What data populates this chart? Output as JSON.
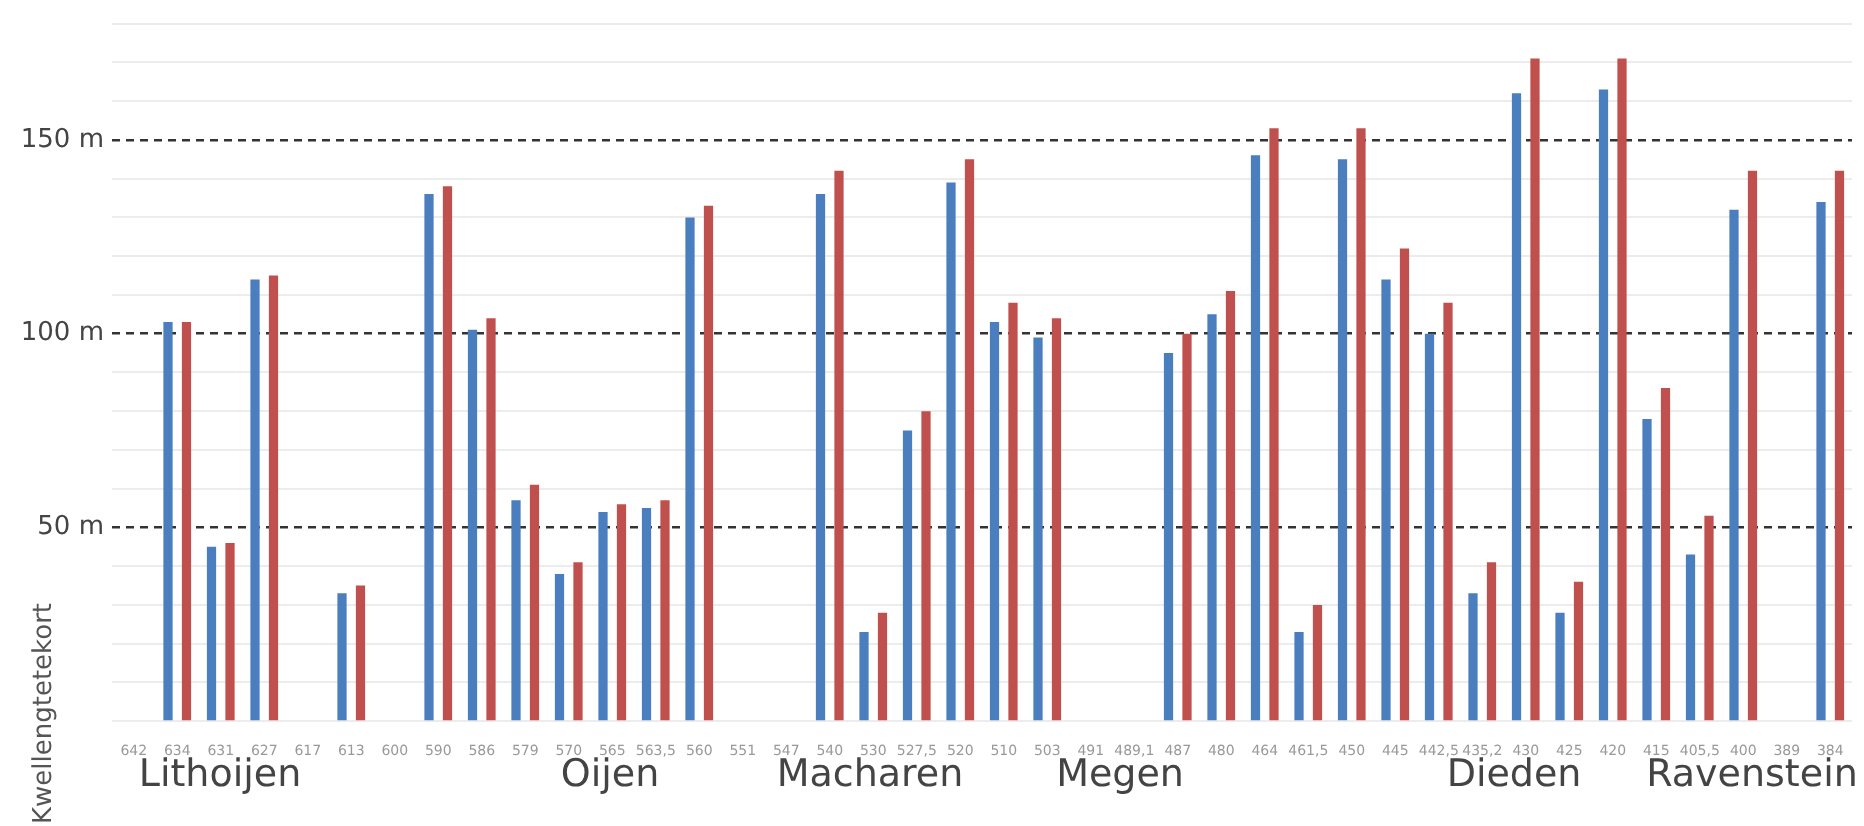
{
  "chart_data": {
    "type": "bar",
    "ylabel": "Kwellengtetekort",
    "categories": [
      "642",
      "634",
      "631",
      "627",
      "617",
      "613",
      "600",
      "590",
      "586",
      "579",
      "570",
      "565",
      "563,5",
      "560",
      "551",
      "547",
      "540",
      "530",
      "527,5",
      "520",
      "510",
      "503",
      "491",
      "489,1",
      "487",
      "480",
      "464",
      "461,5",
      "450",
      "445",
      "442,5",
      "435,2",
      "430",
      "425",
      "420",
      "415",
      "405,5",
      "400",
      "389",
      "384"
    ],
    "series": [
      {
        "color": "#4a7ebf",
        "values": [
          null,
          103,
          45,
          114,
          null,
          33,
          null,
          136,
          101,
          57,
          38,
          54,
          55,
          130,
          null,
          null,
          136,
          23,
          75,
          139,
          103,
          99,
          null,
          null,
          95,
          105,
          146,
          23,
          145,
          114,
          100,
          33,
          162,
          28,
          163,
          78,
          43,
          132,
          null,
          134
        ]
      },
      {
        "color": "#c0504d",
        "values": [
          null,
          103,
          46,
          115,
          null,
          35,
          null,
          138,
          104,
          61,
          41,
          56,
          57,
          133,
          null,
          null,
          142,
          28,
          80,
          145,
          108,
          104,
          null,
          null,
          100,
          111,
          153,
          30,
          153,
          122,
          108,
          41,
          171,
          36,
          171,
          86,
          53,
          142,
          null,
          142
        ]
      }
    ],
    "ylim": [
      0,
      180
    ],
    "yticks": [
      {
        "value": 0,
        "label": null
      },
      {
        "value": 10,
        "label": null
      },
      {
        "value": 20,
        "label": null
      },
      {
        "value": 30,
        "label": null
      },
      {
        "value": 40,
        "label": null
      },
      {
        "value": 50,
        "label": "50 m"
      },
      {
        "value": 60,
        "label": null
      },
      {
        "value": 70,
        "label": null
      },
      {
        "value": 80,
        "label": null
      },
      {
        "value": 90,
        "label": null
      },
      {
        "value": 100,
        "label": "100 m"
      },
      {
        "value": 110,
        "label": null
      },
      {
        "value": 120,
        "label": null
      },
      {
        "value": 130,
        "label": null
      },
      {
        "value": 140,
        "label": null
      },
      {
        "value": 150,
        "label": "150 m"
      },
      {
        "value": 160,
        "label": null
      },
      {
        "value": 170,
        "label": null
      },
      {
        "value": 180,
        "label": null
      }
    ],
    "grid": "y",
    "legend": false,
    "annotations": [
      "Lithoijen",
      "Oijen",
      "Macharen",
      "Megen",
      "Dieden",
      "Ravenstein"
    ]
  }
}
